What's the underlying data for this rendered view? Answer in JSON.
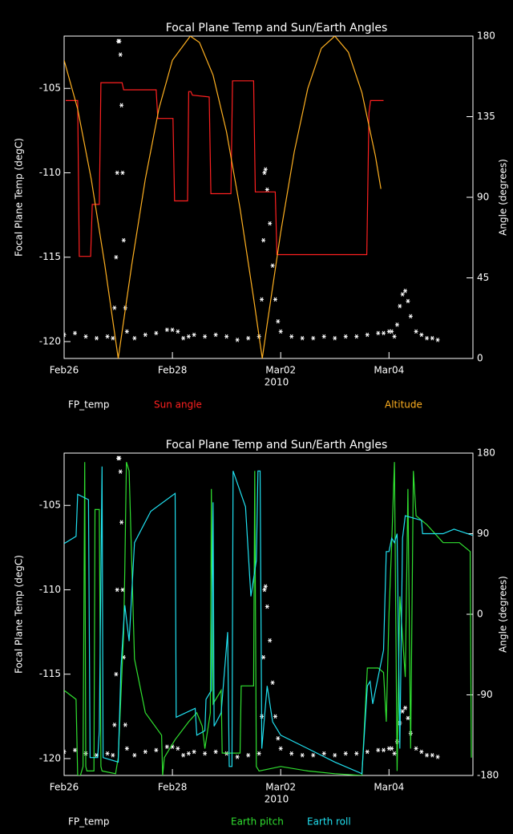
{
  "chart_data": [
    {
      "type": "line",
      "title": "Focal Plane Temp and Sun/Earth Angles",
      "xlabel": "2010",
      "ylabel": "Focal Plane Temp (degC)",
      "y2label": "Angle (degrees)",
      "xlim": [
        0,
        7.55
      ],
      "xticks": [
        {
          "value": 0,
          "label": "Feb26"
        },
        {
          "value": 2,
          "label": "Feb28"
        },
        {
          "value": 4,
          "label": "Mar02"
        },
        {
          "value": 6,
          "label": "Mar04"
        }
      ],
      "ylim": [
        -121,
        -101.9
      ],
      "yticks": [
        -105,
        -110,
        -115,
        -120
      ],
      "y2lim": [
        0,
        180
      ],
      "y2ticks": [
        0,
        45,
        90,
        135,
        180
      ],
      "series": [
        {
          "name": "FP_temp",
          "color": "#ffffff",
          "marker": "asterisk",
          "x": [
            0,
            0.2,
            0.4,
            0.6,
            0.8,
            0.9,
            0.93,
            0.96,
            0.98,
            1.0,
            1.02,
            1.04,
            1.06,
            1.08,
            1.1,
            1.13,
            1.16,
            1.3,
            1.5,
            1.7,
            1.9,
            2.0,
            2.1,
            2.2,
            2.3,
            2.4,
            2.6,
            2.8,
            3.0,
            3.2,
            3.4,
            3.6,
            3.65,
            3.68,
            3.7,
            3.72,
            3.75,
            3.8,
            3.85,
            3.9,
            3.95,
            4.0,
            4.2,
            4.4,
            4.6,
            4.8,
            5.0,
            5.2,
            5.4,
            5.6,
            5.8,
            5.9,
            6.0,
            6.05,
            6.1,
            6.15,
            6.2,
            6.25,
            6.3,
            6.35,
            6.4,
            6.5,
            6.6,
            6.7,
            6.8,
            6.9
          ],
          "values": [
            -119.6,
            -119.5,
            -119.7,
            -119.8,
            -119.7,
            -119.8,
            -118,
            -115,
            -110,
            -102.2,
            -102.2,
            -103,
            -106,
            -110,
            -114,
            -118,
            -119.4,
            -119.8,
            -119.6,
            -119.5,
            -119.3,
            -119.3,
            -119.4,
            -119.8,
            -119.7,
            -119.6,
            -119.7,
            -119.6,
            -119.7,
            -119.9,
            -119.8,
            -119.7,
            -117.5,
            -114,
            -110,
            -109.8,
            -111,
            -113,
            -115.5,
            -117.5,
            -118.8,
            -119.4,
            -119.7,
            -119.8,
            -119.8,
            -119.7,
            -119.8,
            -119.7,
            -119.7,
            -119.6,
            -119.5,
            -119.5,
            -119.4,
            -119.4,
            -119.7,
            -119,
            -117.9,
            -117.2,
            -117,
            -117.6,
            -118.5,
            -119.4,
            -119.6,
            -119.8,
            -119.8,
            -119.9
          ]
        },
        {
          "name": "Sun angle",
          "color": "#ff2020",
          "axis": "y2",
          "x": [
            0.03,
            0.25,
            0.28,
            0.49,
            0.52,
            0.65,
            0.68,
            1.07,
            1.1,
            1.7,
            1.73,
            2.01,
            2.04,
            2.28,
            2.3,
            2.34,
            2.37,
            2.68,
            2.71,
            3.08,
            3.11,
            3.5,
            3.53,
            3.9,
            3.93,
            5.59,
            5.63,
            5.66,
            5.9
          ],
          "values": [
            144,
            144,
            57,
            57,
            86,
            86,
            154,
            154,
            150,
            150,
            134,
            134,
            88,
            88,
            149,
            149,
            147,
            146,
            92,
            92,
            155,
            155,
            93,
            93,
            58,
            58,
            137,
            144,
            144
          ]
        },
        {
          "name": "Altitude",
          "color": "#ffb020",
          "axis": "y2",
          "x": [
            0,
            0.25,
            0.5,
            0.75,
            1.0,
            1.25,
            1.5,
            1.75,
            2.0,
            2.33,
            2.5,
            2.75,
            3.0,
            3.25,
            3.5,
            3.66,
            3.75,
            4.0,
            4.25,
            4.5,
            4.75,
            5.0,
            5.25,
            5.5,
            5.75,
            5.85
          ],
          "values": [
            166.5,
            139.3,
            100.2,
            52.4,
            0,
            52.4,
            100.2,
            139.3,
            166.5,
            180,
            176.4,
            158.2,
            126.5,
            83.7,
            33.6,
            0,
            19.1,
            70.4,
            115.4,
            150.8,
            173.2,
            180,
            171,
            148.5,
            112.9,
            94.7
          ]
        }
      ]
    },
    {
      "type": "line",
      "title": "Focal Plane Temp and Sun/Earth Angles",
      "xlabel": "2010",
      "ylabel": "Focal Plane Temp (degC)",
      "y2label": "Angle (degrees)",
      "xlim": [
        0,
        7.55
      ],
      "xticks": [
        {
          "value": 0,
          "label": "Feb26"
        },
        {
          "value": 2,
          "label": "Feb28"
        },
        {
          "value": 4,
          "label": "Mar02"
        },
        {
          "value": 6,
          "label": "Mar04"
        }
      ],
      "ylim": [
        -121,
        -101.9
      ],
      "yticks": [
        -105,
        -110,
        -115,
        -120
      ],
      "y2lim": [
        -180,
        180
      ],
      "y2ticks": [
        -180,
        -90,
        0,
        90,
        180
      ],
      "series": [
        {
          "name": "FP_temp",
          "color": "#ffffff",
          "marker": "asterisk",
          "x": [
            0,
            0.2,
            0.4,
            0.6,
            0.8,
            0.9,
            0.93,
            0.96,
            0.98,
            1.0,
            1.02,
            1.04,
            1.06,
            1.08,
            1.1,
            1.13,
            1.16,
            1.3,
            1.5,
            1.7,
            1.9,
            2.0,
            2.1,
            2.2,
            2.3,
            2.4,
            2.6,
            2.8,
            3.0,
            3.2,
            3.4,
            3.6,
            3.65,
            3.68,
            3.7,
            3.72,
            3.75,
            3.8,
            3.85,
            3.9,
            3.95,
            4.0,
            4.2,
            4.4,
            4.6,
            4.8,
            5.0,
            5.2,
            5.4,
            5.6,
            5.8,
            5.9,
            6.0,
            6.05,
            6.1,
            6.15,
            6.2,
            6.25,
            6.3,
            6.35,
            6.4,
            6.5,
            6.6,
            6.7,
            6.8,
            6.9
          ],
          "values": [
            -119.6,
            -119.5,
            -119.7,
            -119.8,
            -119.7,
            -119.8,
            -118,
            -115,
            -110,
            -102.2,
            -102.2,
            -103,
            -106,
            -110,
            -114,
            -118,
            -119.4,
            -119.8,
            -119.6,
            -119.5,
            -119.3,
            -119.3,
            -119.4,
            -119.8,
            -119.7,
            -119.6,
            -119.7,
            -119.6,
            -119.7,
            -119.9,
            -119.8,
            -119.7,
            -117.5,
            -114,
            -110,
            -109.8,
            -111,
            -113,
            -115.5,
            -117.5,
            -118.8,
            -119.4,
            -119.7,
            -119.8,
            -119.8,
            -119.7,
            -119.8,
            -119.7,
            -119.7,
            -119.6,
            -119.5,
            -119.5,
            -119.4,
            -119.4,
            -119.7,
            -119,
            -117.9,
            -117.2,
            -117,
            -117.6,
            -118.5,
            -119.4,
            -119.6,
            -119.8,
            -119.8,
            -119.9
          ]
        },
        {
          "name": "Earth pitch",
          "color": "#30e030",
          "axis": "y2",
          "x": [
            0,
            0.22,
            0.25,
            0.3,
            0.35,
            0.38,
            0.4,
            0.42,
            0.55,
            0.57,
            0.65,
            0.68,
            0.7,
            0.95,
            1.0,
            1.1,
            1.12,
            1.15,
            1.2,
            1.3,
            1.5,
            1.8,
            1.82,
            1.85,
            2.05,
            2.3,
            2.45,
            2.55,
            2.6,
            2.65,
            2.7,
            2.72,
            2.75,
            2.9,
            2.92,
            3.25,
            3.27,
            3.5,
            3.52,
            3.55,
            3.6,
            4.0,
            4.5,
            5.0,
            5.5,
            5.6,
            5.8,
            5.9,
            5.95,
            6.0,
            6.05,
            6.1,
            6.15,
            6.2,
            6.3,
            6.35,
            6.4,
            6.45,
            6.5,
            6.7,
            7.0,
            7.3,
            7.5,
            7.52
          ],
          "values": [
            -85,
            -95,
            -180,
            -180,
            -170,
            170,
            -170,
            -175,
            -175,
            117,
            117,
            -170,
            -175,
            -178,
            -160,
            -20,
            50,
            170,
            160,
            -50,
            -110,
            -135,
            -180,
            -160,
            -140,
            -120,
            -110,
            -125,
            -150,
            -130,
            -110,
            140,
            -100,
            -85,
            -155,
            -155,
            -80,
            -80,
            160,
            -170,
            -175,
            -170,
            -175,
            -178,
            -180,
            -60,
            -60,
            -65,
            -120,
            0,
            80,
            170,
            -175,
            20,
            -70,
            140,
            -150,
            160,
            110,
            100,
            80,
            80,
            70,
            -160
          ]
        },
        {
          "name": "Earth roll",
          "color": "#20e0f0",
          "axis": "y2",
          "x": [
            0,
            0.22,
            0.25,
            0.45,
            0.48,
            0.62,
            0.65,
            0.7,
            0.72,
            1.0,
            1.05,
            1.12,
            1.2,
            1.3,
            1.6,
            2.05,
            2.07,
            2.42,
            2.45,
            2.6,
            2.62,
            2.72,
            2.75,
            2.77,
            2.9,
            3.02,
            3.05,
            3.1,
            3.12,
            3.35,
            3.45,
            3.55,
            3.58,
            3.62,
            3.65,
            3.75,
            3.85,
            4.0,
            4.5,
            5.0,
            5.5,
            5.6,
            5.65,
            5.7,
            5.9,
            5.95,
            6.0,
            6.05,
            6.1,
            6.15,
            6.2,
            6.25,
            6.3,
            6.6,
            6.62,
            6.9,
            7.0,
            7.2,
            7.55
          ],
          "values": [
            79,
            87,
            134,
            128,
            -160,
            -160,
            -130,
            165,
            -160,
            -165,
            -60,
            10,
            -30,
            80,
            115,
            135,
            -115,
            -105,
            -135,
            -130,
            -95,
            -85,
            125,
            -125,
            -110,
            -20,
            -170,
            -170,
            160,
            120,
            20,
            60,
            160,
            160,
            -150,
            -80,
            -120,
            -135,
            -150,
            -165,
            -178,
            -80,
            -75,
            -100,
            -40,
            70,
            70,
            85,
            80,
            90,
            -150,
            85,
            110,
            105,
            90,
            90,
            90,
            95,
            88
          ]
        }
      ]
    }
  ]
}
